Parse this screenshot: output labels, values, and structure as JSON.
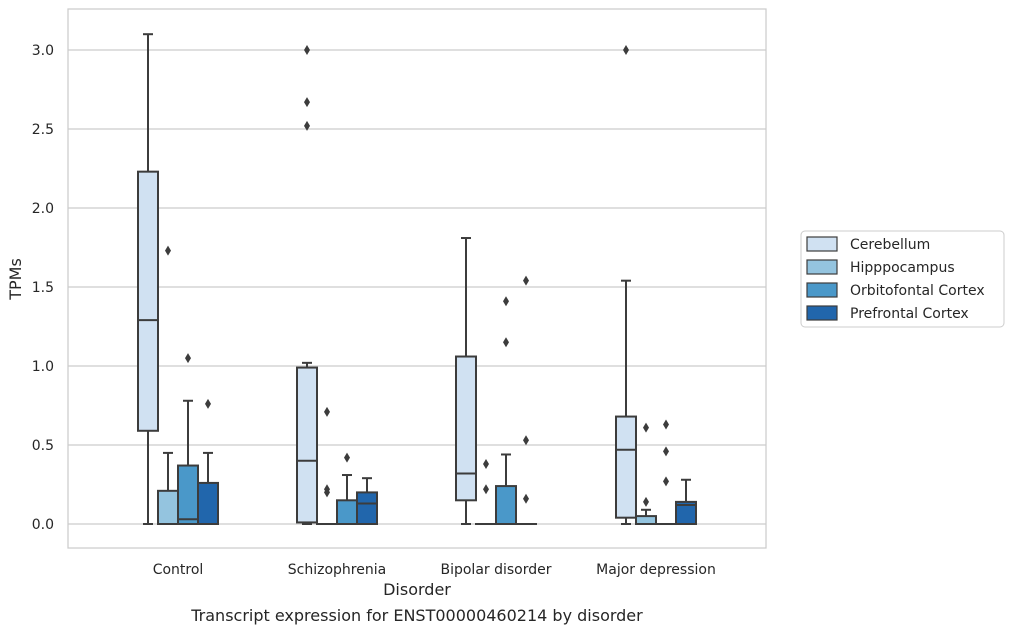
{
  "caption": "Transcript expression for ENST00000460214 by disorder",
  "chart_data": {
    "type": "box",
    "xlabel": "Disorder",
    "ylabel": "TPMs",
    "ylim": [
      -0.15,
      3.25
    ],
    "yticks": [
      0.0,
      0.5,
      1.0,
      1.5,
      2.0,
      2.5,
      3.0
    ],
    "ytick_labels": [
      "0.0",
      "0.5",
      "1.0",
      "1.5",
      "2.0",
      "2.5",
      "3.0"
    ],
    "grid": "horizontal",
    "legend_position": "right",
    "categories": [
      "Control",
      "Schizophrenia",
      "Bipolar disorder",
      "Major depression"
    ],
    "series": [
      {
        "name": "Cerebellum",
        "color": "#d0e1f2",
        "boxes": [
          {
            "whislo": 0.0,
            "q1": 0.59,
            "med": 1.29,
            "q3": 2.23,
            "whishi": 3.1,
            "fliers": []
          },
          {
            "whislo": 0.0,
            "q1": 0.01,
            "med": 0.4,
            "q3": 0.99,
            "whishi": 1.02,
            "fliers": [
              2.52,
              2.67,
              3.0
            ]
          },
          {
            "whislo": 0.0,
            "q1": 0.15,
            "med": 0.32,
            "q3": 1.06,
            "whishi": 1.81,
            "fliers": []
          },
          {
            "whislo": 0.0,
            "q1": 0.04,
            "med": 0.47,
            "q3": 0.68,
            "whishi": 1.54,
            "fliers": [
              3.0
            ]
          }
        ]
      },
      {
        "name": "Hipppocampus",
        "color": "#94c4df",
        "boxes": [
          {
            "whislo": 0.0,
            "q1": 0.0,
            "med": 0.0,
            "q3": 0.21,
            "whishi": 0.45,
            "fliers": [
              1.73
            ]
          },
          {
            "whislo": 0.0,
            "q1": 0.0,
            "med": 0.0,
            "q3": 0.0,
            "whishi": 0.0,
            "fliers": [
              0.2,
              0.22,
              0.71
            ]
          },
          {
            "whislo": 0.0,
            "q1": 0.0,
            "med": 0.0,
            "q3": 0.0,
            "whishi": 0.0,
            "fliers": [
              0.22,
              0.38
            ]
          },
          {
            "whislo": 0.0,
            "q1": 0.0,
            "med": 0.0,
            "q3": 0.05,
            "whishi": 0.09,
            "fliers": [
              0.14,
              0.61
            ]
          }
        ]
      },
      {
        "name": "Orbitofontal Cortex",
        "color": "#4a98c9",
        "boxes": [
          {
            "whislo": 0.0,
            "q1": 0.0,
            "med": 0.03,
            "q3": 0.37,
            "whishi": 0.78,
            "fliers": [
              1.05
            ]
          },
          {
            "whislo": 0.0,
            "q1": 0.0,
            "med": 0.0,
            "q3": 0.15,
            "whishi": 0.31,
            "fliers": [
              0.42
            ]
          },
          {
            "whislo": 0.0,
            "q1": 0.0,
            "med": 0.0,
            "q3": 0.24,
            "whishi": 0.44,
            "fliers": [
              1.15,
              1.41
            ]
          },
          {
            "whislo": 0.0,
            "q1": 0.0,
            "med": 0.0,
            "q3": 0.0,
            "whishi": 0.0,
            "fliers": [
              0.27,
              0.46,
              0.63
            ]
          }
        ]
      },
      {
        "name": "Prefrontal Cortex",
        "color": "#2166ac",
        "boxes": [
          {
            "whislo": 0.0,
            "q1": 0.0,
            "med": 0.0,
            "q3": 0.26,
            "whishi": 0.45,
            "fliers": [
              0.76
            ]
          },
          {
            "whislo": 0.0,
            "q1": 0.0,
            "med": 0.13,
            "q3": 0.2,
            "whishi": 0.29,
            "fliers": []
          },
          {
            "whislo": 0.0,
            "q1": 0.0,
            "med": 0.0,
            "q3": 0.0,
            "whishi": 0.0,
            "fliers": [
              0.16,
              0.53,
              1.54
            ]
          },
          {
            "whislo": 0.0,
            "q1": 0.0,
            "med": 0.12,
            "q3": 0.14,
            "whishi": 0.28,
            "fliers": []
          }
        ]
      }
    ]
  }
}
